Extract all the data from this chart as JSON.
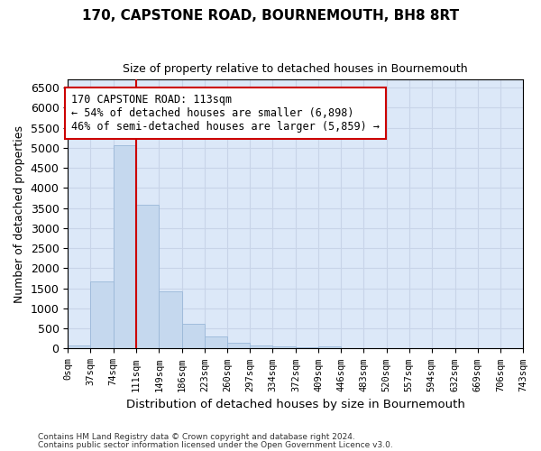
{
  "title": "170, CAPSTONE ROAD, BOURNEMOUTH, BH8 8RT",
  "subtitle": "Size of property relative to detached houses in Bournemouth",
  "xlabel": "Distribution of detached houses by size in Bournemouth",
  "ylabel": "Number of detached properties",
  "bin_edges": [
    0,
    37,
    74,
    111,
    149,
    186,
    223,
    260,
    297,
    334,
    372,
    409,
    446,
    483,
    520,
    557,
    594,
    632,
    669,
    706,
    743
  ],
  "bar_heights": [
    75,
    1670,
    5060,
    3590,
    1430,
    615,
    295,
    150,
    80,
    50,
    35,
    50,
    0,
    0,
    0,
    0,
    0,
    0,
    0,
    0
  ],
  "bar_color": "#c5d8ee",
  "bar_edgecolor": "#9ab8d8",
  "vline_x": 111,
  "vline_color": "#cc0000",
  "ylim": [
    0,
    6700
  ],
  "yticks": [
    0,
    500,
    1000,
    1500,
    2000,
    2500,
    3000,
    3500,
    4000,
    4500,
    5000,
    5500,
    6000,
    6500
  ],
  "annotation_title": "170 CAPSTONE ROAD: 113sqm",
  "annotation_line1": "← 54% of detached houses are smaller (6,898)",
  "annotation_line2": "46% of semi-detached houses are larger (5,859) →",
  "annotation_box_color": "#cc0000",
  "footer_line1": "Contains HM Land Registry data © Crown copyright and database right 2024.",
  "footer_line2": "Contains public sector information licensed under the Open Government Licence v3.0.",
  "grid_color": "#c8d4e8",
  "background_color": "#dce8f8"
}
